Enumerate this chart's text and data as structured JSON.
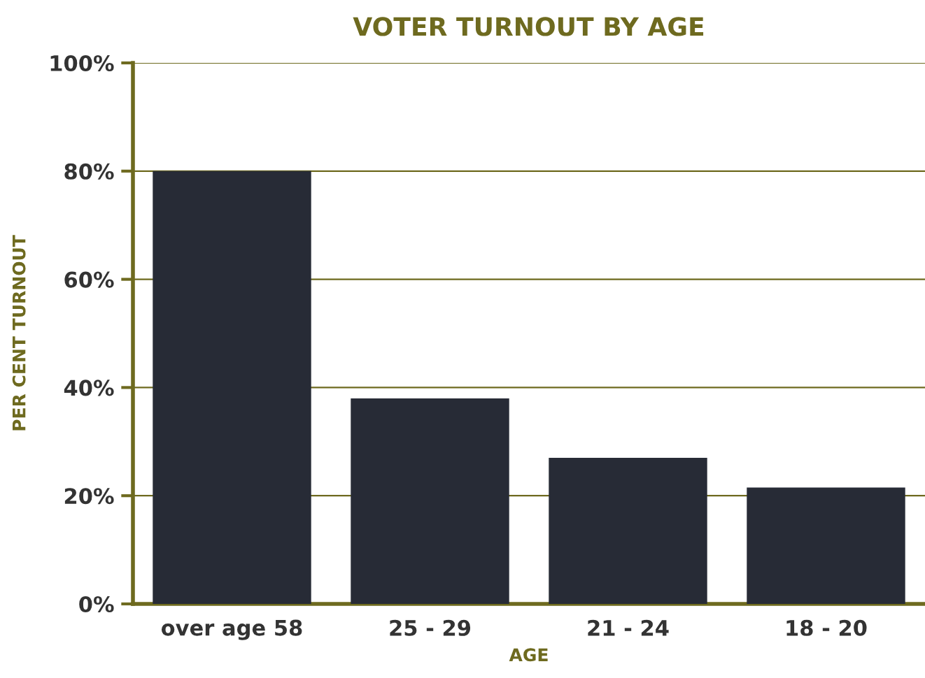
{
  "chart_data": {
    "type": "bar",
    "title": "VOTER TURNOUT BY AGE",
    "xlabel": "AGE",
    "ylabel": "PER CENT TURNOUT",
    "categories": [
      "over age 58",
      "25 - 29",
      "21 - 24",
      "18 - 20"
    ],
    "values": [
      80,
      38,
      27,
      21.5
    ],
    "color": "#272b36",
    "ylim": [
      0,
      100
    ],
    "yticks": [
      {
        "value": 0,
        "label": "0%"
      },
      {
        "value": 20,
        "label": "20%"
      },
      {
        "value": 40,
        "label": "40%"
      },
      {
        "value": 60,
        "label": "60%"
      },
      {
        "value": 80,
        "label": "80%"
      },
      {
        "value": 100,
        "label": "100%"
      }
    ],
    "grid": "y"
  }
}
